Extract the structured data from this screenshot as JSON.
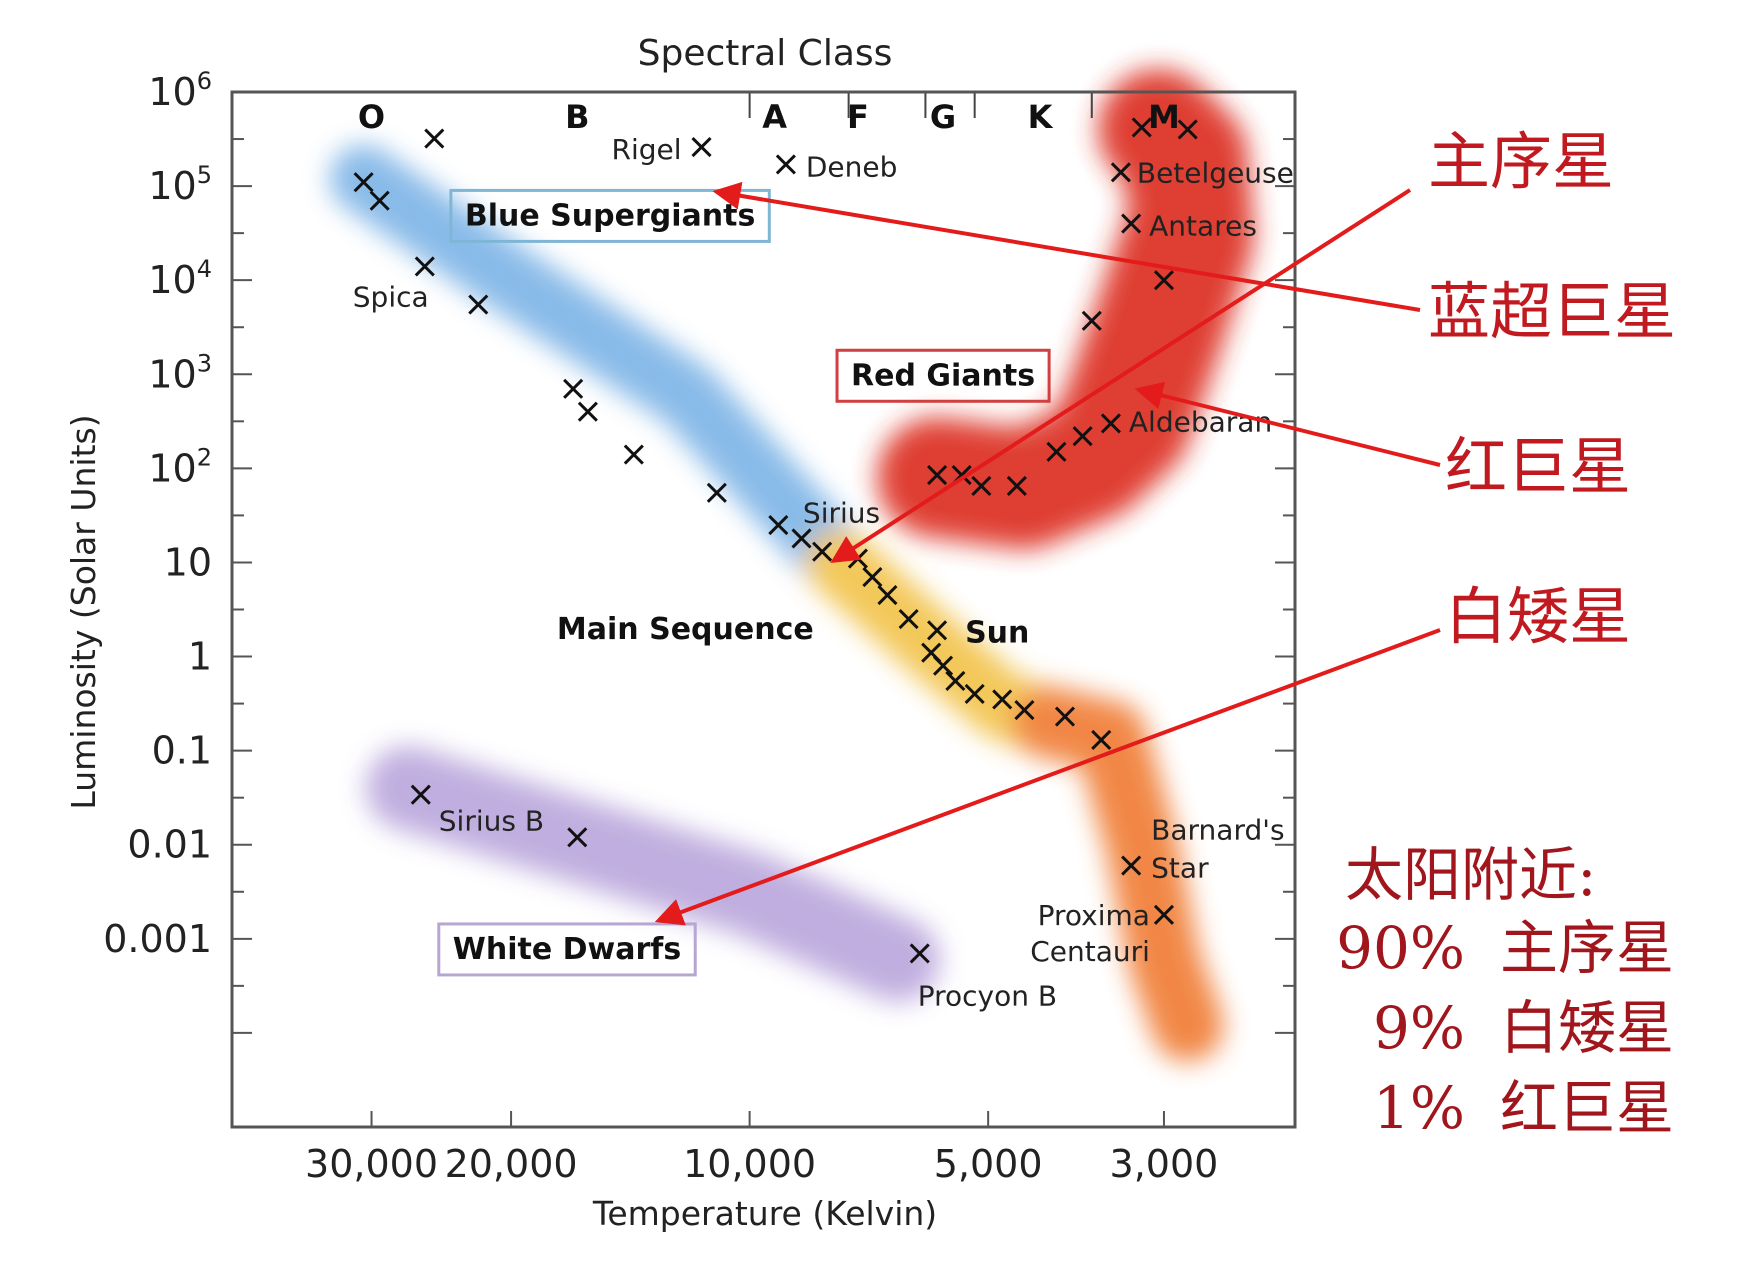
{
  "chart_data": {
    "type": "scatter",
    "title": "Spectral Class",
    "xlabel": "Temperature (Kelvin)",
    "ylabel": "Luminosity (Solar Units)",
    "x_scale": "log-reversed",
    "y_scale": "log",
    "xlim": [
      45000,
      2050
    ],
    "ylim": [
      1e-05,
      1000000
    ],
    "x_ticks": [
      {
        "value": 30000,
        "label": "30,000"
      },
      {
        "value": 20000,
        "label": "20,000"
      },
      {
        "value": 10000,
        "label": "10,000"
      },
      {
        "value": 5000,
        "label": "5,000"
      },
      {
        "value": 3000,
        "label": "3,000"
      }
    ],
    "y_ticks": [
      {
        "value": 1000000,
        "base": "10",
        "exp": "6"
      },
      {
        "value": 100000,
        "base": "10",
        "exp": "5"
      },
      {
        "value": 10000,
        "base": "10",
        "exp": "4"
      },
      {
        "value": 1000,
        "base": "10",
        "exp": "3"
      },
      {
        "value": 100,
        "base": "10",
        "exp": "2"
      },
      {
        "value": 10,
        "base": "10",
        "exp": ""
      },
      {
        "value": 1,
        "base": "1",
        "exp": ""
      },
      {
        "value": 0.1,
        "base": "0.1",
        "exp": ""
      },
      {
        "value": 0.01,
        "base": "0.01",
        "exp": ""
      },
      {
        "value": 0.001,
        "base": "0.001",
        "exp": ""
      },
      {
        "value": 0.0001,
        "base": "",
        "exp": ""
      }
    ],
    "spectral_classes": [
      {
        "label": "O",
        "temp": 30000
      },
      {
        "label": "B",
        "temp": 16500
      },
      {
        "label": "A",
        "temp": 9300
      },
      {
        "label": "F",
        "temp": 7300
      },
      {
        "label": "G",
        "temp": 5700
      },
      {
        "label": "K",
        "temp": 4300
      },
      {
        "label": "M",
        "temp": 3000
      }
    ],
    "class_boundaries": [
      10000,
      7500,
      6000,
      5200,
      3700
    ],
    "regions": [
      {
        "label": "Blue Supergiants",
        "temp": 15000,
        "lum": 50000,
        "border": "#7fb6d6"
      },
      {
        "label": "Red Giants",
        "temp": 5700,
        "lum": 1000,
        "border": "#d04040"
      },
      {
        "label": "White Dwarfs",
        "temp": 17000,
        "lum": 0.0008,
        "border": "#b8a6d2"
      }
    ],
    "unlabeled_region": {
      "label": "Main Sequence",
      "temp": 8300,
      "lum": 2
    },
    "bands": [
      {
        "name": "main-sequence-hot",
        "color": "#7db4e6",
        "width": 34,
        "points": [
          [
            30700,
            120000
          ],
          [
            20000,
            10000
          ],
          [
            12000,
            600
          ],
          [
            7700,
            10
          ]
        ]
      },
      {
        "name": "main-sequence-mid",
        "color": "#f2c24a",
        "width": 34,
        "points": [
          [
            7700,
            10
          ],
          [
            6000,
            1.5
          ],
          [
            4800,
            0.3
          ],
          [
            4200,
            0.2
          ]
        ]
      },
      {
        "name": "main-sequence-cool",
        "color": "#f07a30",
        "width": 36,
        "points": [
          [
            4200,
            0.2
          ],
          [
            3500,
            0.14
          ],
          [
            3200,
            0.01
          ],
          [
            3000,
            0.0006
          ],
          [
            2800,
            0.00012
          ]
        ]
      },
      {
        "name": "white-dwarfs",
        "color": "#b9a6dc",
        "width": 42,
        "points": [
          [
            27000,
            0.04
          ],
          [
            17000,
            0.012
          ],
          [
            10000,
            0.003
          ],
          [
            6500,
            0.0006
          ]
        ]
      },
      {
        "name": "red-giants",
        "color": "#dc2a1c",
        "width": 60,
        "points": [
          [
            3050,
            400000
          ],
          [
            2800,
            200000
          ],
          [
            2750,
            30000
          ],
          [
            3000,
            3000
          ],
          [
            3300,
            300
          ],
          [
            3700,
            120
          ],
          [
            4500,
            60
          ],
          [
            5800,
            80
          ]
        ]
      },
      {
        "name": "red-giants-core",
        "color": "#dc2a1c",
        "width": 44,
        "points": [
          [
            3100,
            400000
          ],
          [
            2900,
            60000
          ],
          [
            3200,
            5000
          ],
          [
            3500,
            600
          ],
          [
            3700,
            200
          ]
        ]
      }
    ],
    "stars": [
      {
        "temp": 25000,
        "lum": 320000,
        "name": "",
        "dx": 0,
        "dy": 0
      },
      {
        "temp": 11500,
        "lum": 260000,
        "name": "Rigel",
        "dx": -90,
        "dy": 12
      },
      {
        "temp": 9000,
        "lum": 170000,
        "name": "Deneb",
        "dx": 20,
        "dy": 12
      },
      {
        "temp": 3200,
        "lum": 420000,
        "name": "",
        "dx": 0,
        "dy": 0
      },
      {
        "temp": 2800,
        "lum": 400000,
        "name": "",
        "dx": 0,
        "dy": 0
      },
      {
        "temp": 3400,
        "lum": 140000,
        "name": "Betelgeuse",
        "dx": 16,
        "dy": 10
      },
      {
        "temp": 3300,
        "lum": 40000,
        "name": "Antares",
        "dx": 18,
        "dy": 12
      },
      {
        "temp": 3000,
        "lum": 10000,
        "name": "",
        "dx": 0,
        "dy": 0
      },
      {
        "temp": 3700,
        "lum": 3700,
        "name": "",
        "dx": 0,
        "dy": 0
      },
      {
        "temp": 30700,
        "lum": 110000,
        "name": "",
        "dx": 0,
        "dy": 0
      },
      {
        "temp": 29300,
        "lum": 70000,
        "name": "",
        "dx": 0,
        "dy": 0
      },
      {
        "temp": 25700,
        "lum": 14000,
        "name": "Spica",
        "dx": -72,
        "dy": 40
      },
      {
        "temp": 22000,
        "lum": 5500,
        "name": "",
        "dx": 0,
        "dy": 0
      },
      {
        "temp": 16700,
        "lum": 700,
        "name": "",
        "dx": 0,
        "dy": 0
      },
      {
        "temp": 16000,
        "lum": 400,
        "name": "",
        "dx": 0,
        "dy": 0
      },
      {
        "temp": 14000,
        "lum": 140,
        "name": "",
        "dx": 0,
        "dy": 0
      },
      {
        "temp": 11000,
        "lum": 55,
        "name": "",
        "dx": 0,
        "dy": 0
      },
      {
        "temp": 9200,
        "lum": 25,
        "name": "",
        "dx": 0,
        "dy": 0
      },
      {
        "temp": 8600,
        "lum": 18,
        "name": "",
        "dx": 0,
        "dy": 0
      },
      {
        "temp": 8100,
        "lum": 13,
        "name": "",
        "dx": 0,
        "dy": 0
      },
      {
        "temp": 7300,
        "lum": 11,
        "name": "Sirius",
        "dx": -55,
        "dy": -36
      },
      {
        "temp": 7000,
        "lum": 7,
        "name": "",
        "dx": 0,
        "dy": 0
      },
      {
        "temp": 6700,
        "lum": 4.5,
        "name": "",
        "dx": 0,
        "dy": 0
      },
      {
        "temp": 6300,
        "lum": 2.5,
        "name": "",
        "dx": 0,
        "dy": 0
      },
      {
        "temp": 5800,
        "lum": 1.9,
        "name": "Sun",
        "dx": 28,
        "dy": 12
      },
      {
        "temp": 5900,
        "lum": 1.1,
        "name": "",
        "dx": 0,
        "dy": 0
      },
      {
        "temp": 5700,
        "lum": 0.8,
        "name": "",
        "dx": 0,
        "dy": 0
      },
      {
        "temp": 5500,
        "lum": 0.55,
        "name": "",
        "dx": 0,
        "dy": 0
      },
      {
        "temp": 5200,
        "lum": 0.4,
        "name": "",
        "dx": 0,
        "dy": 0
      },
      {
        "temp": 4800,
        "lum": 0.35,
        "name": "",
        "dx": 0,
        "dy": 0
      },
      {
        "temp": 4500,
        "lum": 0.27,
        "name": "",
        "dx": 0,
        "dy": 0
      },
      {
        "temp": 4000,
        "lum": 0.23,
        "name": "",
        "dx": 0,
        "dy": 0
      },
      {
        "temp": 3600,
        "lum": 0.13,
        "name": "",
        "dx": 0,
        "dy": 0
      },
      {
        "temp": 5800,
        "lum": 85,
        "name": "",
        "dx": 0,
        "dy": 0
      },
      {
        "temp": 5400,
        "lum": 85,
        "name": "",
        "dx": 0,
        "dy": 0
      },
      {
        "temp": 5100,
        "lum": 65,
        "name": "",
        "dx": 0,
        "dy": 0
      },
      {
        "temp": 4600,
        "lum": 65,
        "name": "",
        "dx": 0,
        "dy": 0
      },
      {
        "temp": 4100,
        "lum": 150,
        "name": "",
        "dx": 0,
        "dy": 0
      },
      {
        "temp": 3800,
        "lum": 220,
        "name": "",
        "dx": 0,
        "dy": 0
      },
      {
        "temp": 3500,
        "lum": 300,
        "name": "Aldebaran",
        "dx": 18,
        "dy": 8
      },
      {
        "temp": 26000,
        "lum": 0.034,
        "name": "Sirius B",
        "dx": 18,
        "dy": 36
      },
      {
        "temp": 16500,
        "lum": 0.012,
        "name": "",
        "dx": 0,
        "dy": 0
      },
      {
        "temp": 6100,
        "lum": 0.0007,
        "name": "Procyon B",
        "dx": -2,
        "dy": 52
      },
      {
        "temp": 3300,
        "lum": 0.006,
        "name": "",
        "dx": 0,
        "dy": 0
      },
      {
        "temp": 3000,
        "lum": 0.0018,
        "name": "",
        "dx": 0,
        "dy": 0
      }
    ],
    "extra_labels": [
      {
        "text": "Barnard's",
        "temp": 3300,
        "lum": 0.006,
        "dx": 20,
        "dy": -26,
        "anchor": "start"
      },
      {
        "text": "Star",
        "temp": 3300,
        "lum": 0.006,
        "dx": 20,
        "dy": 12,
        "anchor": "start"
      },
      {
        "text": "Proxima",
        "temp": 3000,
        "lum": 0.0018,
        "dx": -14,
        "dy": 10,
        "anchor": "end"
      },
      {
        "text": "Centauri",
        "temp": 3000,
        "lum": 0.0018,
        "dx": -14,
        "dy": 46,
        "anchor": "end"
      }
    ]
  },
  "annotations": {
    "labels": [
      {
        "id": "main-sequence",
        "text": "主序星"
      },
      {
        "id": "blue-supergiant",
        "text": "蓝超巨星"
      },
      {
        "id": "red-giant",
        "text": "红巨星"
      },
      {
        "id": "white-dwarf",
        "text": "白矮星"
      }
    ],
    "arrow_color": "#e31b1b",
    "stats_title": "太阳附近:",
    "stats": [
      {
        "percent": "90%",
        "label": "主序星"
      },
      {
        "percent": "9%",
        "label": "白矮星"
      },
      {
        "percent": "1%",
        "label": "红巨星"
      }
    ]
  }
}
